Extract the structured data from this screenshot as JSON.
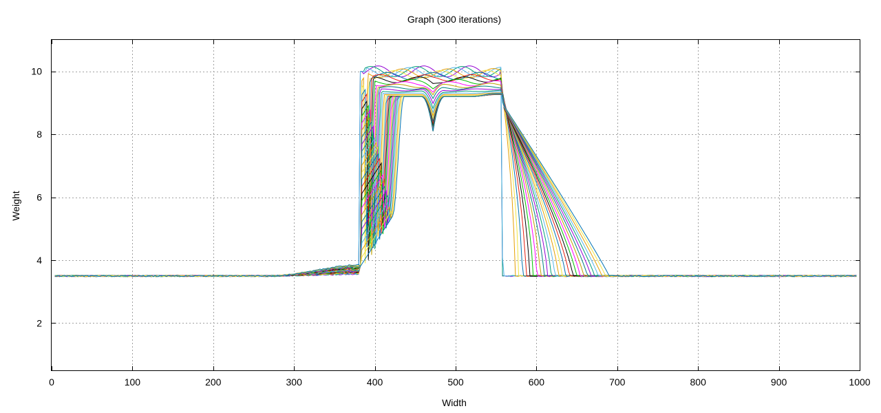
{
  "chart_data": {
    "type": "line",
    "title": "Graph (300 iterations)",
    "xlabel": "Width",
    "ylabel": "Weight",
    "xlim": [
      0,
      1000
    ],
    "ylim": [
      0.5,
      11
    ],
    "xticks": [
      0,
      100,
      200,
      300,
      400,
      500,
      600,
      700,
      800,
      900,
      1000
    ],
    "yticks": [
      2,
      4,
      6,
      8,
      10
    ],
    "xtick_labels": [
      "0",
      "100",
      "200",
      "300",
      "400",
      "500",
      "600",
      "700",
      "800",
      "900",
      "1000"
    ],
    "ytick_labels": [
      "2",
      "4",
      "6",
      "8",
      "10"
    ],
    "grid": true,
    "legend": "none",
    "baseline": 3.5,
    "plateau_high": 10,
    "plateau_settled": 9.2,
    "dip_x": 472,
    "dip_min": 8.1,
    "rise_x_range": [
      380,
      422
    ],
    "fall_x_range": [
      556,
      560
    ],
    "tail_end_x_range": [
      560,
      690
    ],
    "series_count": 30,
    "palette": [
      "#9400d3",
      "#009e73",
      "#56b4e9",
      "#e69f00",
      "#f0e442",
      "#0072b2",
      "#e51e10",
      "#000000",
      "#00c000",
      "#ff00ff",
      "#c0a000",
      "#008080"
    ]
  }
}
